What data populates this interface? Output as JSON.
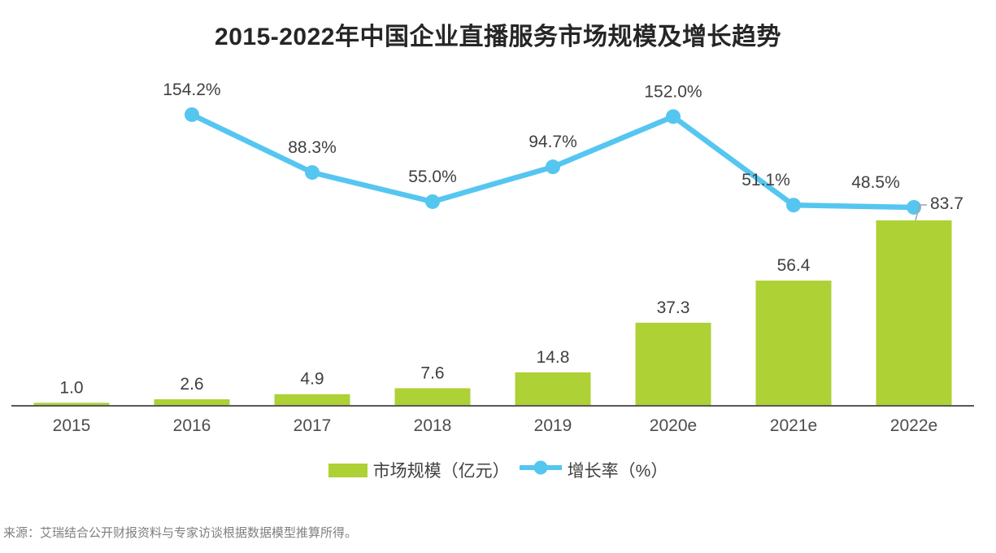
{
  "chart": {
    "title": "2015-2022年中国企业直播服务市场规模及增长趋势"
  },
  "chart_data": {
    "type": "bar+line",
    "title": "2015-2022年中国企业直播服务市场规模及增长趋势",
    "categories": [
      "2015",
      "2016",
      "2017",
      "2018",
      "2019",
      "2020e",
      "2021e",
      "2022e"
    ],
    "series": [
      {
        "name": "市场规模（亿元）",
        "type": "bar",
        "unit": "亿元",
        "values": [
          1.0,
          2.6,
          4.9,
          7.6,
          14.8,
          37.3,
          56.4,
          83.7
        ],
        "labels": [
          "1.0",
          "2.6",
          "4.9",
          "7.6",
          "14.8",
          "37.3",
          "56.4",
          "83.7"
        ]
      },
      {
        "name": "增长率（%）",
        "type": "line",
        "unit": "%",
        "values": [
          null,
          154.2,
          88.3,
          55.0,
          94.7,
          152.0,
          51.1,
          48.5
        ],
        "labels": [
          null,
          "154.2%",
          "88.3%",
          "55.0%",
          "94.7%",
          "152.0%",
          "51.1%",
          "48.5%"
        ]
      }
    ],
    "grid": false,
    "legend_position": "bottom",
    "bar_axis_visible": false,
    "line_axis_visible": false
  },
  "legend": {
    "bar_label": "市场规模（亿元）",
    "line_label": "增长率（%）"
  },
  "source": "来源：艾瑞结合公开财报资料与专家访谈根据数据模型推算所得。",
  "colors": {
    "bar": "#aed136",
    "line": "#55c6f0",
    "axis": "#595959",
    "data_label": "#404040",
    "title": "#262626",
    "source": "#7f7f7f",
    "leader": "#a3a3a3"
  }
}
